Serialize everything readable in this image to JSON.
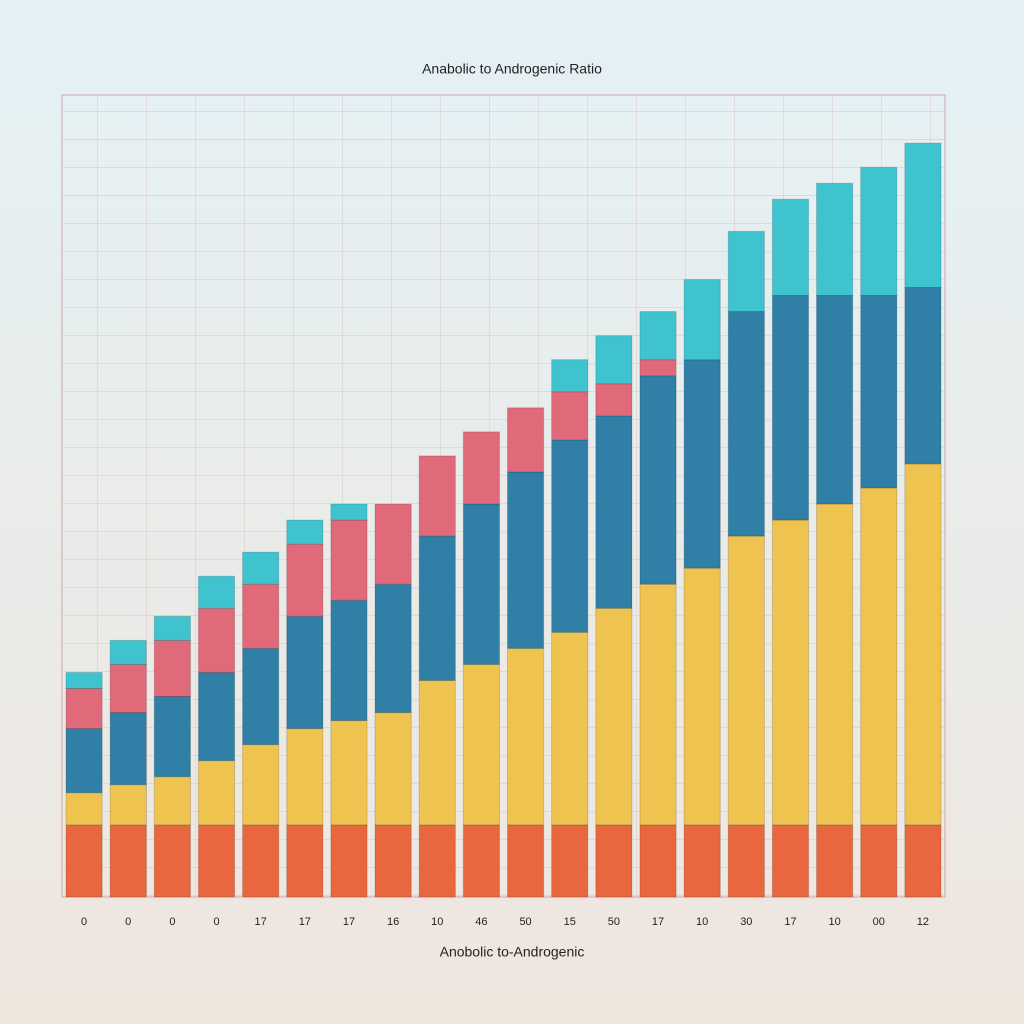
{
  "chart_data": {
    "type": "stacked_bar",
    "title": "Anabolic to Androgenic Ratio",
    "x_label": "Anobolic to-Androgenic",
    "categories": [
      "0",
      "0",
      "0",
      "0",
      "17",
      "17",
      "17",
      "16",
      "10",
      "46",
      "50",
      "15",
      "50",
      "17",
      "10",
      "30",
      "17",
      "10",
      "00",
      "12"
    ],
    "ylim": [
      0,
      100
    ],
    "grid": true,
    "series": [
      {
        "color": "#e8673f",
        "values": [
          9,
          9,
          9,
          9,
          9,
          9,
          9,
          9,
          9,
          9,
          9,
          9,
          9,
          9,
          9,
          9,
          9,
          9,
          9,
          9
        ]
      },
      {
        "color": "#efc34f",
        "values": [
          4,
          5,
          6,
          8,
          10,
          12,
          13,
          14,
          18,
          20,
          22,
          24,
          27,
          30,
          32,
          36,
          38,
          40,
          42,
          45
        ]
      },
      {
        "color": "#2f7fa6",
        "values": [
          8,
          9,
          10,
          11,
          12,
          14,
          15,
          16,
          18,
          20,
          22,
          24,
          24,
          26,
          26,
          28,
          28,
          26,
          24,
          22
        ]
      },
      {
        "color": "#e0697a",
        "values": [
          5,
          6,
          7,
          8,
          8,
          9,
          10,
          10,
          10,
          9,
          8,
          6,
          4,
          2,
          0,
          0,
          0,
          0,
          0,
          0
        ]
      },
      {
        "color": "#3fc4cf",
        "values": [
          2,
          3,
          3,
          4,
          4,
          3,
          2,
          0,
          0,
          0,
          0,
          4,
          6,
          6,
          10,
          10,
          12,
          14,
          16,
          18
        ]
      }
    ]
  }
}
